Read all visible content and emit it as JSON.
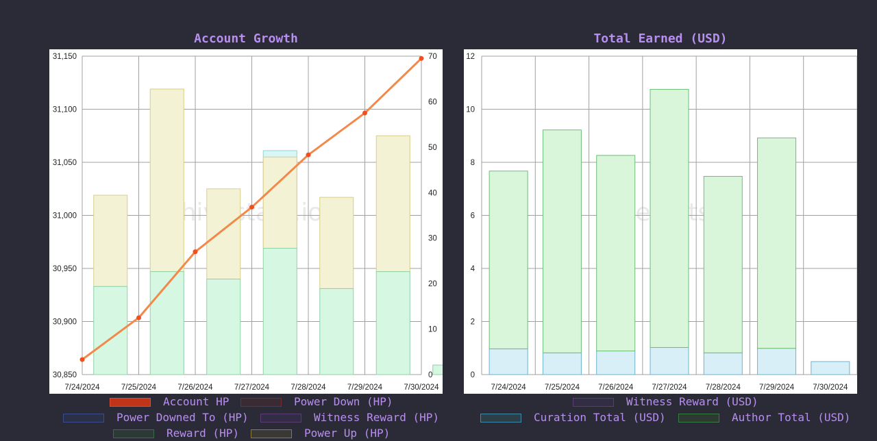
{
  "chart_data": [
    {
      "type": "bar+line",
      "title": "Account Growth",
      "watermark": "hivestats.io",
      "categories": [
        "7/24/2024",
        "7/25/2024",
        "7/26/2024",
        "7/27/2024",
        "7/28/2024",
        "7/29/2024",
        "7/30/2024"
      ],
      "y_left": {
        "ylim": [
          30850,
          31150
        ],
        "ticks": [
          "30,850",
          "30,900",
          "30,950",
          "31,000",
          "31,050",
          "31,100",
          "31,150"
        ],
        "tick_values": [
          30850,
          30900,
          30950,
          31000,
          31050,
          31100,
          31150
        ]
      },
      "y_right": {
        "ylim": [
          0,
          70
        ],
        "ticks": [
          "0",
          "10",
          "20",
          "30",
          "40",
          "50",
          "60",
          "70"
        ],
        "tick_values": [
          0,
          10,
          20,
          30,
          40,
          50,
          60,
          70
        ]
      },
      "bars": {
        "reward_hp": [
          30933,
          30947,
          30940,
          30969,
          30931,
          30947,
          30859
        ],
        "witness_reward_hp_top": [
          30933,
          30947,
          30940,
          31061,
          30931,
          30947,
          30859
        ],
        "power_up_hp_top": [
          31019,
          31119,
          31025,
          31055,
          31017,
          31075,
          30859
        ]
      },
      "line": {
        "name": "Account HP",
        "values": [
          3.3,
          12.5,
          27.0,
          36.8,
          48.3,
          57.5,
          69.5
        ]
      },
      "grid": true
    },
    {
      "type": "stacked-bar",
      "title": "Total Earned (USD)",
      "watermark": "hivestats.io",
      "categories": [
        "7/24/2024",
        "7/25/2024",
        "7/26/2024",
        "7/27/2024",
        "7/28/2024",
        "7/29/2024",
        "7/30/2024"
      ],
      "ylim": [
        0,
        12
      ],
      "ticks": [
        "0",
        "2",
        "4",
        "6",
        "8",
        "10",
        "12"
      ],
      "tick_values": [
        0,
        2,
        4,
        6,
        8,
        10,
        12
      ],
      "series": [
        {
          "name": "Curation Total (USD)",
          "values": [
            0.97,
            0.82,
            0.89,
            1.02,
            0.82,
            0.99,
            0.49
          ]
        },
        {
          "name": "Author Total (USD)",
          "values": [
            6.7,
            8.4,
            7.37,
            9.73,
            6.65,
            7.93,
            0
          ]
        }
      ],
      "grid": true
    }
  ],
  "legend_left": [
    {
      "label": "Account HP",
      "fill": "#c0341a",
      "border": "#e04a2a"
    },
    {
      "label": "Power Down (HP)",
      "fill": "#3a2a33",
      "border": "#7a2a30"
    },
    {
      "label": "Power Downed To (HP)",
      "fill": "#2a3048",
      "border": "#3a4d8a"
    },
    {
      "label": "Witness Reward (HP)",
      "fill": "#332c45",
      "border": "#5c3a78"
    },
    {
      "label": "Reward (HP)",
      "fill": "#2c3a36",
      "border": "#3a6a4c"
    },
    {
      "label": "Power Up (HP)",
      "fill": "#3a3834",
      "border": "#8a7a3c"
    }
  ],
  "legend_right": [
    {
      "label": "Witness Reward (USD)",
      "fill": "#332c45",
      "border": "#5c3a78"
    },
    {
      "label": "Curation Total (USD)",
      "fill": "#2c3e48",
      "border": "#3e8aa8"
    },
    {
      "label": "Author Total (USD)",
      "fill": "#2c3a30",
      "border": "#3a7a44"
    }
  ],
  "colors": {
    "line": "#f2894a",
    "line_point": "#f0501e",
    "reward_fill": "#d6f8e2",
    "reward_stroke": "#8fd1a8",
    "power_up_fill": "#f4f2d4",
    "power_up_stroke": "#d8cd8a",
    "witness_fill": "#d9f5f4",
    "witness_stroke": "#8fd6d6",
    "curation_fill": "#d8eff8",
    "curation_stroke": "#6db3cf",
    "author_fill": "#d9f5da",
    "author_stroke": "#6fbd78",
    "grid": "#a0a0a0"
  }
}
